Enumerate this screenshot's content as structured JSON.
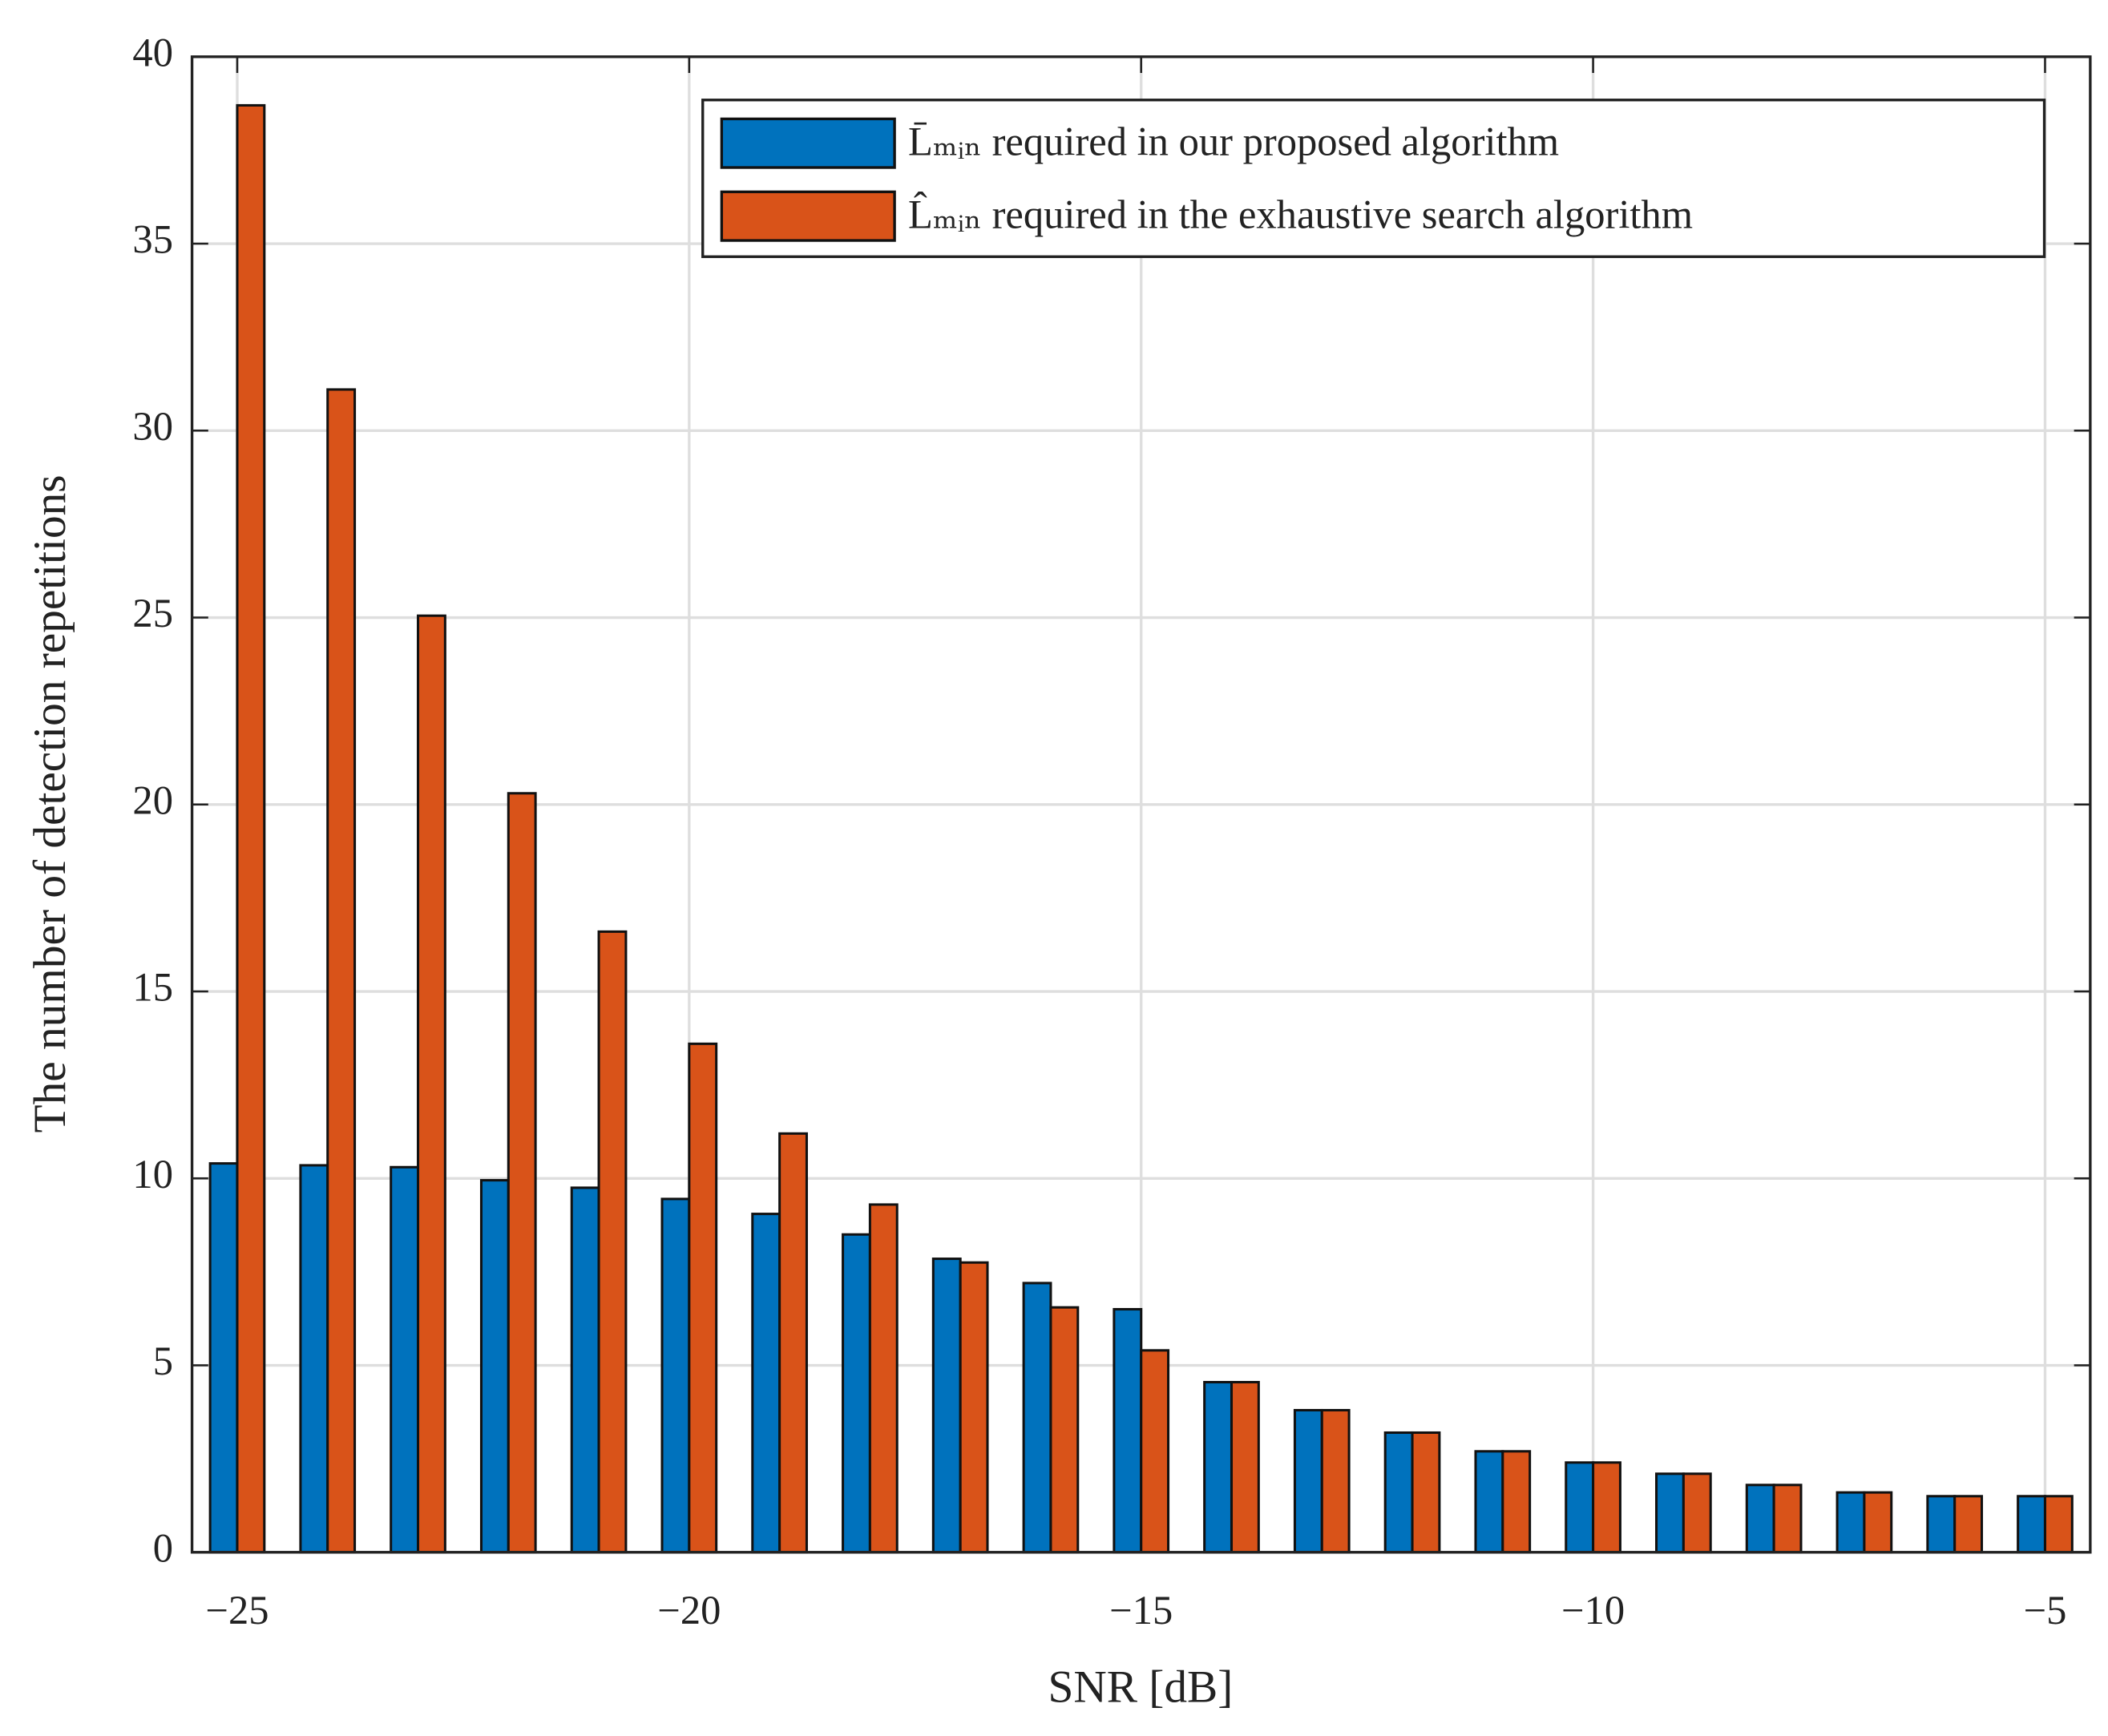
{
  "chart_data": {
    "type": "bar",
    "x_label": "SNR [dB]",
    "y_label": "The number of detection repetitions",
    "x": [
      -25,
      -24,
      -23,
      -22,
      -21,
      -20,
      -19,
      -18,
      -17,
      -16,
      -15,
      -14,
      -13,
      -12,
      -11,
      -10,
      -9,
      -8,
      -7,
      -6,
      -5
    ],
    "series": [
      {
        "name": "L̄ₘᵢₙ required in our proposed algorithm",
        "color": "#0072bd",
        "values": [
          10.4,
          10.35,
          10.3,
          9.95,
          9.75,
          9.45,
          9.05,
          8.5,
          7.85,
          7.2,
          6.5,
          4.55,
          3.8,
          3.2,
          2.7,
          2.4,
          2.1,
          1.8,
          1.6,
          1.5,
          1.5
        ]
      },
      {
        "name": "L̂ₘᵢₙ required in the exhaustive search algorithm",
        "color": "#d95319",
        "values": [
          38.7,
          31.1,
          25.05,
          20.3,
          16.6,
          13.6,
          11.2,
          9.3,
          7.75,
          6.55,
          5.4,
          4.55,
          3.8,
          3.2,
          2.7,
          2.4,
          2.1,
          1.8,
          1.6,
          1.5,
          1.5
        ]
      }
    ],
    "xlim": [
      -25.5,
      -4.5
    ],
    "xticks": [
      {
        "value": -25,
        "label": "−25"
      },
      {
        "value": -20,
        "label": "−20"
      },
      {
        "value": -15,
        "label": "−15"
      },
      {
        "value": -10,
        "label": "−10"
      },
      {
        "value": -5,
        "label": "−5"
      }
    ],
    "ylim": [
      0,
      40
    ],
    "yticks": [
      0,
      5,
      10,
      15,
      20,
      25,
      30,
      35,
      40
    ],
    "grid": true,
    "legend": "top-right"
  }
}
